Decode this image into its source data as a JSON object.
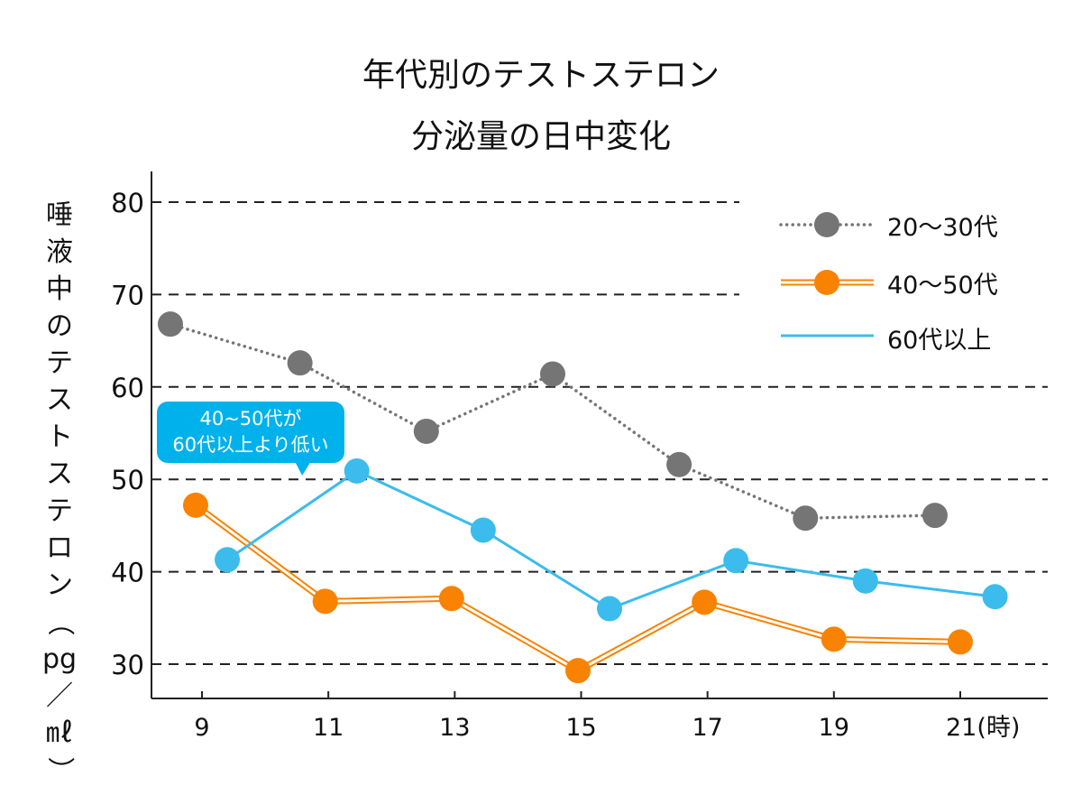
{
  "chart_data": {
    "type": "line",
    "title": [
      "年代別のテストステロン",
      "分泌量の日中変化"
    ],
    "xlabel": "(時)",
    "ylabel": "唾液中のテストステロン（pg／㎖）",
    "xticks": [
      9,
      11,
      13,
      15,
      17,
      19,
      21
    ],
    "xtick_labels": [
      "9",
      "11",
      "13",
      "15",
      "17",
      "19",
      "21(時)"
    ],
    "yticks": [
      30,
      40,
      50,
      60,
      70,
      80
    ],
    "ylim": [
      26.5,
      83.5
    ],
    "xlim": [
      8.2,
      22.0
    ],
    "grid": "horizontal-dashed",
    "legend_position": "top-right",
    "series": [
      {
        "name": "20〜30代",
        "color": "#757575",
        "line_style": "dotted",
        "markers": true,
        "x": [
          8.5,
          10.55,
          12.55,
          14.55,
          16.55,
          18.55,
          20.6
        ],
        "values": [
          66.8,
          62.6,
          55.2,
          61.4,
          51.6,
          45.8,
          46.1
        ]
      },
      {
        "name": "40〜50代",
        "color": "#f98200",
        "line_style": "double",
        "markers": true,
        "x": [
          8.9,
          10.95,
          12.95,
          14.95,
          16.95,
          19.0,
          21.0
        ],
        "values": [
          47.2,
          36.8,
          37.1,
          29.3,
          36.7,
          32.7,
          32.4
        ]
      },
      {
        "name": "60代以上",
        "color": "#3bbcec",
        "line_style": "solid",
        "markers": true,
        "x": [
          9.4,
          11.45,
          13.45,
          15.45,
          17.45,
          19.5,
          21.55
        ],
        "values": [
          41.3,
          50.9,
          44.5,
          36.0,
          41.2,
          39.0,
          37.3
        ]
      }
    ],
    "annotations": [
      {
        "text_lines": [
          "40~50代が",
          "60代以上より低い"
        ],
        "color": "#00b1eb",
        "points_to": "60代以上 @ 11.45"
      }
    ]
  },
  "ylabel_chars": [
    "唾",
    "液",
    "中",
    "の",
    "テ",
    "ス",
    "ト",
    "ス",
    "テ",
    "ロ",
    "ン",
    "（",
    "pg",
    "／",
    "㎖",
    "）"
  ]
}
